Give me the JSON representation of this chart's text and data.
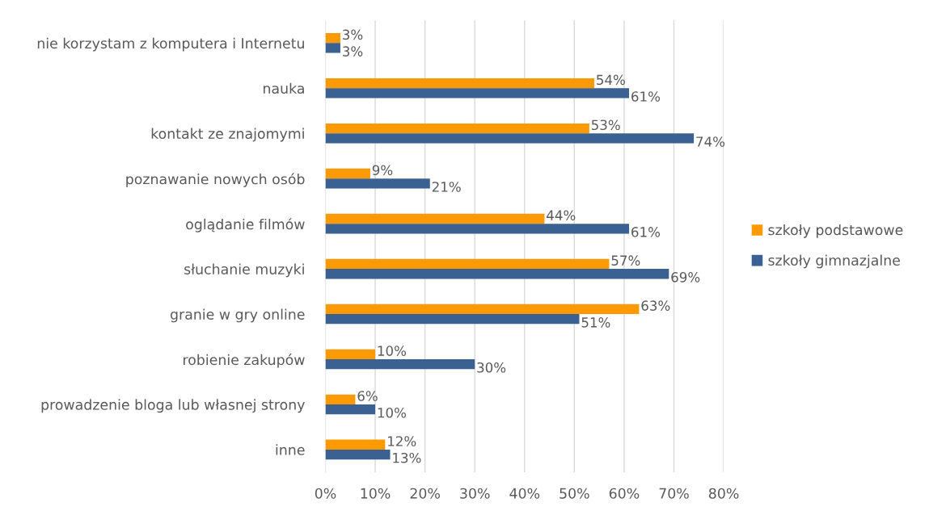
{
  "chart_data": {
    "type": "bar",
    "orientation": "horizontal",
    "categories": [
      "nie korzystam z komputera i Internetu",
      "nauka",
      "kontakt ze znajomymi",
      "poznawanie nowych osób",
      "oglądanie filmów",
      "słuchanie muzyki",
      "granie w gry online",
      "robienie zakupów",
      "prowadzenie bloga lub własnej strony",
      "inne"
    ],
    "series": [
      {
        "name": "szkoły podstawowe",
        "color": "#ff9900",
        "values": [
          3,
          54,
          53,
          9,
          44,
          57,
          63,
          10,
          6,
          12
        ],
        "value_labels": [
          "3%",
          "54%",
          "53%",
          "9%",
          "44%",
          "57%",
          "63%",
          "10%",
          "6%",
          "12%"
        ]
      },
      {
        "name": "szkoły gimnazjalne",
        "color": "#3a6191",
        "values": [
          3,
          61,
          74,
          21,
          61,
          69,
          51,
          30,
          10,
          13
        ],
        "value_labels": [
          "3%",
          "61%",
          "74%",
          "21%",
          "61%",
          "69%",
          "51%",
          "30%",
          "10%",
          "13%"
        ]
      }
    ],
    "xlim": [
      0,
      80
    ],
    "xticks": [
      {
        "value": 0,
        "label": "0%"
      },
      {
        "value": 10,
        "label": "10%"
      },
      {
        "value": 20,
        "label": "20%"
      },
      {
        "value": 30,
        "label": "30%"
      },
      {
        "value": 40,
        "label": "40%"
      },
      {
        "value": 50,
        "label": "50%"
      },
      {
        "value": 60,
        "label": "60%"
      },
      {
        "value": 70,
        "label": "70%"
      },
      {
        "value": 80,
        "label": "80%"
      }
    ],
    "grid": "x",
    "legend": "right"
  }
}
